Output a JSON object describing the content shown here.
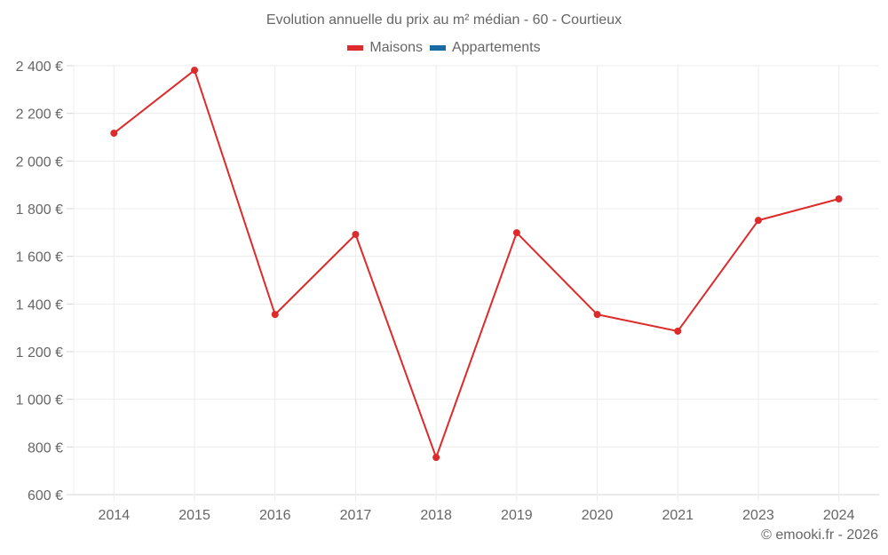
{
  "chart": {
    "title": "Evolution annuelle du prix au m² médian - 60 - Courtieux",
    "legend": [
      {
        "label": "Maisons",
        "color": "#dd2a2a"
      },
      {
        "label": "Appartements",
        "color": "#1a6aa3"
      }
    ],
    "credit": "© emooki.fr - 2026"
  },
  "chart_data": {
    "type": "line",
    "title": "Evolution annuelle du prix au m² médian - 60 - Courtieux",
    "xlabel": "",
    "ylabel": "",
    "categories": [
      "2014",
      "2015",
      "2016",
      "2017",
      "2018",
      "2019",
      "2020",
      "2021",
      "2023",
      "2024"
    ],
    "series": [
      {
        "name": "Maisons",
        "color": "#dd2a2a",
        "values": [
          2117,
          2381,
          1356,
          1692,
          756,
          1699,
          1356,
          1286,
          1751,
          1841
        ]
      },
      {
        "name": "Appartements",
        "color": "#1a6aa3",
        "values": []
      }
    ],
    "yticks": [
      "600 €",
      "800 €",
      "1 000 €",
      "1 200 €",
      "1 400 €",
      "1 600 €",
      "1 800 €",
      "2 000 €",
      "2 200 €",
      "2 400 €"
    ],
    "ylim": [
      600,
      2400
    ],
    "grid": true,
    "legend_position": "top"
  }
}
